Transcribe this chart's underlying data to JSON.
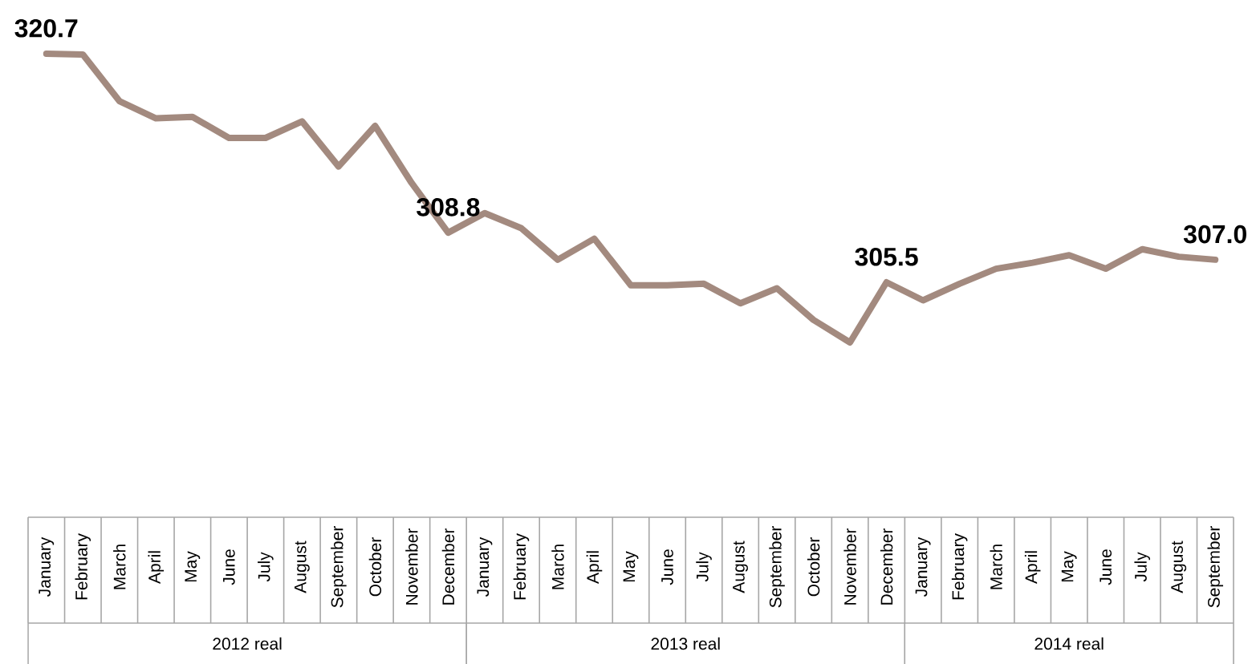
{
  "chart_data": {
    "type": "line",
    "categories": [
      "January",
      "February",
      "March",
      "April",
      "May",
      "June",
      "July",
      "August",
      "September",
      "October",
      "November",
      "December",
      "January",
      "February",
      "March",
      "April",
      "May",
      "June",
      "July",
      "August",
      "September",
      "October",
      "November",
      "December",
      "January",
      "February",
      "March",
      "April",
      "May",
      "June",
      "July",
      "August",
      "September"
    ],
    "series": [
      {
        "color": "#a38a7f",
        "values": [
          320.7,
          320.65,
          317.55,
          316.4,
          316.5,
          315.1,
          315.1,
          316.2,
          313.2,
          315.9,
          312.1,
          308.8,
          310.1,
          309.1,
          307.0,
          308.4,
          305.3,
          305.3,
          305.4,
          304.1,
          305.1,
          303.0,
          301.5,
          305.5,
          304.3,
          305.4,
          306.4,
          306.8,
          307.3,
          306.4,
          307.7,
          307.2,
          307.0
        ],
        "value_labels": [
          "320.7",
          null,
          null,
          null,
          null,
          null,
          null,
          null,
          null,
          null,
          null,
          "308.8",
          null,
          null,
          null,
          null,
          null,
          null,
          null,
          null,
          null,
          null,
          null,
          "305.5",
          null,
          null,
          null,
          null,
          null,
          null,
          null,
          null,
          "307.0"
        ]
      }
    ],
    "annotations": [
      "2012 real",
      "2013 real",
      "2014 real"
    ],
    "marker": "none",
    "line_style": "solid"
  }
}
